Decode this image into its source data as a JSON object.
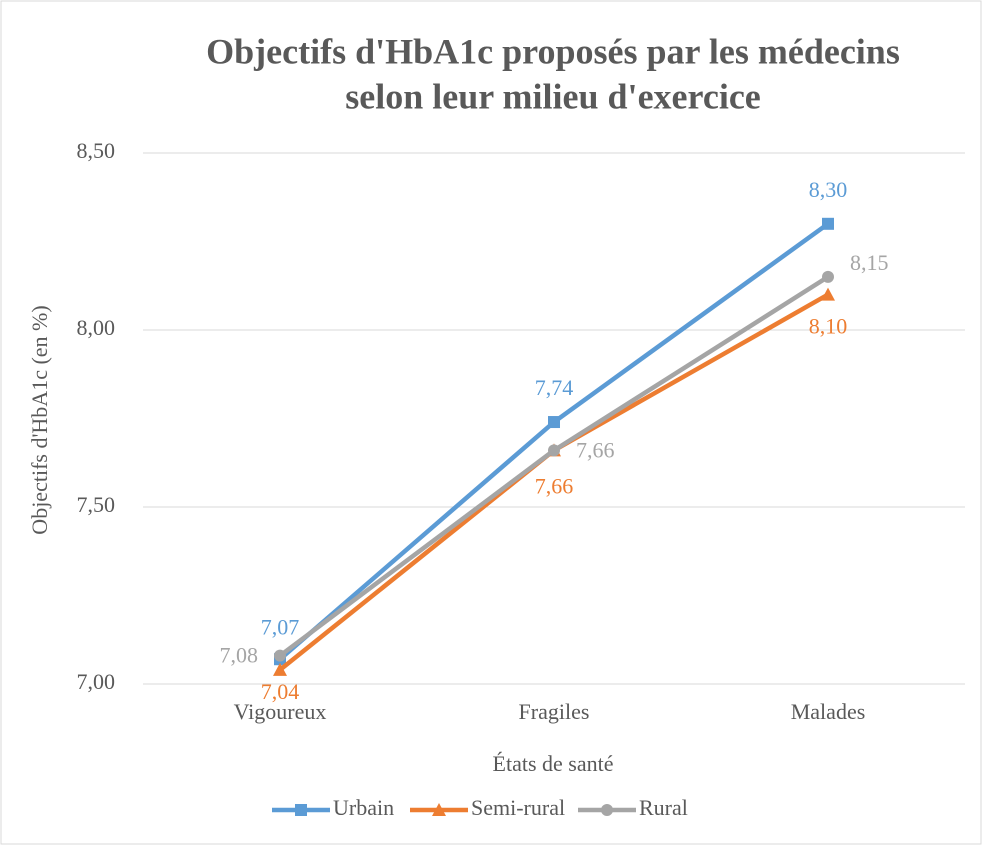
{
  "chart_data": {
    "type": "line",
    "title": [
      "Objectifs d'HbA1c proposés par les médecins",
      "selon leur milieu d'exercice"
    ],
    "x_label": "États de santé",
    "y_label": "Objectifs d'HbA1c (en %)",
    "categories": [
      "Vigoureux",
      "Fragiles",
      "Malades"
    ],
    "series": [
      {
        "name": "Urbain",
        "color": "#5b9bd5",
        "marker": "square",
        "values": [
          7.07,
          7.74,
          8.3
        ],
        "value_labels": [
          "7,07",
          "7,74",
          "8,30"
        ]
      },
      {
        "name": "Semi-rural",
        "color": "#ed7d31",
        "marker": "triangle",
        "values": [
          7.04,
          7.66,
          8.1
        ],
        "value_labels": [
          "7,04",
          "7,66",
          "8,10"
        ]
      },
      {
        "name": "Rural",
        "color": "#a5a5a5",
        "marker": "circle",
        "values": [
          7.08,
          7.66,
          8.15
        ],
        "value_labels": [
          "7,08",
          "7,66",
          "8,15"
        ]
      }
    ],
    "ylim": [
      7.0,
      8.5
    ],
    "yticks": [
      {
        "value": 7.0,
        "label": "7,00"
      },
      {
        "value": 7.5,
        "label": "7,50"
      },
      {
        "value": 8.0,
        "label": "8,00"
      },
      {
        "value": 8.5,
        "label": "8,50"
      }
    ],
    "grid": true,
    "legend": "bottom"
  }
}
